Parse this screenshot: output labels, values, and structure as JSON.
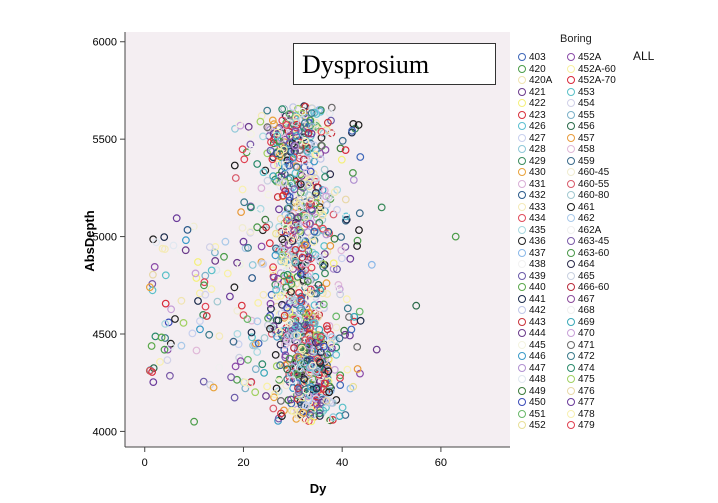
{
  "chart_data": {
    "type": "scatter",
    "title": "Dysprosium",
    "xlabel": "Dy",
    "ylabel": "AbsDepth",
    "xlim": [
      -4,
      74
    ],
    "ylim": [
      3920,
      6050
    ],
    "x_ticks": [
      "0",
      "20",
      "40",
      "60"
    ],
    "y_ticks": [
      "4000",
      "4500",
      "5000",
      "5500",
      "6000"
    ],
    "grid": false,
    "background": "#f4eef2",
    "marker": "open-circle",
    "legend_title": "Boring",
    "legend_placement": "right",
    "legend_extra_label": "ALL",
    "series": [
      {
        "name": "403",
        "color": "#3d66b8"
      },
      {
        "name": "420",
        "color": "#4a9c48"
      },
      {
        "name": "420A",
        "color": "#f0e4b0"
      },
      {
        "name": "421",
        "color": "#6b3a8c"
      },
      {
        "name": "422",
        "color": "#f4f07a"
      },
      {
        "name": "423",
        "color": "#d8313c"
      },
      {
        "name": "426",
        "color": "#5bbfd0"
      },
      {
        "name": "427",
        "color": "#c8d0ee"
      },
      {
        "name": "428",
        "color": "#8ec8d8"
      },
      {
        "name": "429",
        "color": "#3a8a5c"
      },
      {
        "name": "430",
        "color": "#e8a23a"
      },
      {
        "name": "431",
        "color": "#d9aed6"
      },
      {
        "name": "432",
        "color": "#2a5a8a"
      },
      {
        "name": "433",
        "color": "#f4eab8"
      },
      {
        "name": "434",
        "color": "#e04a5a"
      },
      {
        "name": "435",
        "color": "#a8d8e0"
      },
      {
        "name": "436",
        "color": "#222222"
      },
      {
        "name": "437",
        "color": "#8ab8e8"
      },
      {
        "name": "438",
        "color": "#f2f2f2"
      },
      {
        "name": "439",
        "color": "#6a5aa8"
      },
      {
        "name": "440",
        "color": "#5aa84a"
      },
      {
        "name": "441",
        "color": "#1a2a4a"
      },
      {
        "name": "442",
        "color": "#c0c8e8"
      },
      {
        "name": "443",
        "color": "#c8323a"
      },
      {
        "name": "444",
        "color": "#6a3a8a"
      },
      {
        "name": "445",
        "color": "#f4f4e0"
      },
      {
        "name": "446",
        "color": "#3a9ac8"
      },
      {
        "name": "447",
        "color": "#b090d0"
      },
      {
        "name": "448",
        "color": "#e0e8f0"
      },
      {
        "name": "449",
        "color": "#3a7a3a"
      },
      {
        "name": "450",
        "color": "#3a4ab8"
      },
      {
        "name": "451",
        "color": "#68b868"
      },
      {
        "name": "452",
        "color": "#e8e098"
      },
      {
        "name": "452A",
        "color": "#8a4aa8"
      },
      {
        "name": "452A-60",
        "color": "#f8f0a0"
      },
      {
        "name": "452A-70",
        "color": "#d8283a"
      },
      {
        "name": "453",
        "color": "#5ac0c8"
      },
      {
        "name": "454",
        "color": "#d0d0e8"
      },
      {
        "name": "455",
        "color": "#7ab0c8"
      },
      {
        "name": "456",
        "color": "#2a6a4a"
      },
      {
        "name": "457",
        "color": "#e89a3a"
      },
      {
        "name": "458",
        "color": "#e0b8d8"
      },
      {
        "name": "459",
        "color": "#3a6a8a"
      },
      {
        "name": "460-45",
        "color": "#f0ecd0"
      },
      {
        "name": "460-55",
        "color": "#d85a6a"
      },
      {
        "name": "460-80",
        "color": "#a0c8d0"
      },
      {
        "name": "461",
        "color": "#1a1a1a"
      },
      {
        "name": "462",
        "color": "#a8c8e8"
      },
      {
        "name": "462A",
        "color": "#f0f0f0"
      },
      {
        "name": "463-45",
        "color": "#7a5aa8"
      },
      {
        "name": "463-60",
        "color": "#4a984a"
      },
      {
        "name": "464",
        "color": "#2a2a4a"
      },
      {
        "name": "465",
        "color": "#c8d0e0"
      },
      {
        "name": "466-60",
        "color": "#b82a3a"
      },
      {
        "name": "467",
        "color": "#8a4a9a"
      },
      {
        "name": "468",
        "color": "#f0f0f0"
      },
      {
        "name": "469",
        "color": "#3aa8b8"
      },
      {
        "name": "470",
        "color": "#c8a0d8"
      },
      {
        "name": "471",
        "color": "#6a6a6a"
      },
      {
        "name": "472",
        "color": "#3a7a8a"
      },
      {
        "name": "474",
        "color": "#2a8a6a"
      },
      {
        "name": "475",
        "color": "#a0d060"
      },
      {
        "name": "476",
        "color": "#e8d8a8"
      },
      {
        "name": "477",
        "color": "#6a3a9a"
      },
      {
        "name": "478",
        "color": "#f8f0b0"
      },
      {
        "name": "479",
        "color": "#e04050"
      }
    ]
  }
}
